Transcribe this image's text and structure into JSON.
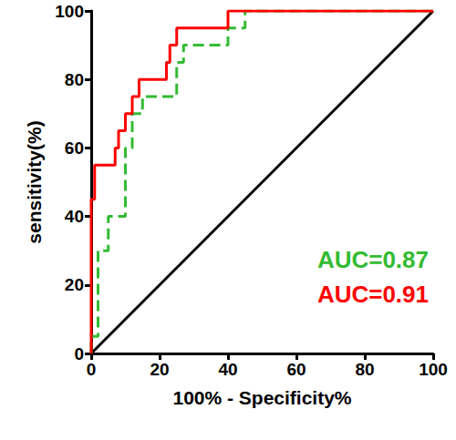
{
  "chart_data": {
    "type": "line",
    "xlabel": "100% - Specificity%",
    "ylabel": "sensitivity(%)",
    "xlim": [
      0,
      100
    ],
    "ylim": [
      0,
      100
    ],
    "xticks": [
      0,
      20,
      40,
      60,
      80,
      100
    ],
    "yticks": [
      0,
      20,
      40,
      60,
      80,
      100
    ],
    "grid": false,
    "series": [
      {
        "color": "#000000",
        "line_style": "solid",
        "x": [
          0,
          100
        ],
        "values": [
          0,
          100
        ]
      },
      {
        "color": "#33bb33",
        "line_style": "dashed",
        "x": [
          0,
          0,
          2,
          2,
          5,
          5,
          10,
          10,
          12,
          12,
          15,
          15,
          25,
          25,
          27,
          27,
          40,
          40,
          45,
          45,
          100
        ],
        "values": [
          0,
          5,
          5,
          30,
          30,
          40,
          40,
          60,
          60,
          70,
          70,
          75,
          75,
          85,
          85,
          90,
          90,
          95,
          95,
          100,
          100
        ]
      },
      {
        "color": "#ff0000",
        "line_style": "solid",
        "x": [
          0,
          0,
          1,
          1,
          7,
          7,
          8,
          8,
          10,
          10,
          12,
          12,
          14,
          14,
          22,
          22,
          23,
          23,
          25,
          25,
          28,
          28,
          40,
          40,
          100
        ],
        "values": [
          0,
          45,
          45,
          55,
          55,
          60,
          60,
          65,
          65,
          70,
          70,
          75,
          75,
          80,
          80,
          85,
          85,
          90,
          90,
          95,
          95,
          95,
          95,
          100,
          100
        ]
      }
    ],
    "annotations": [
      {
        "text": "AUC=0.87",
        "color": "#33bb33"
      },
      {
        "text": "AUC=0.91",
        "color": "#ff0000"
      }
    ]
  }
}
